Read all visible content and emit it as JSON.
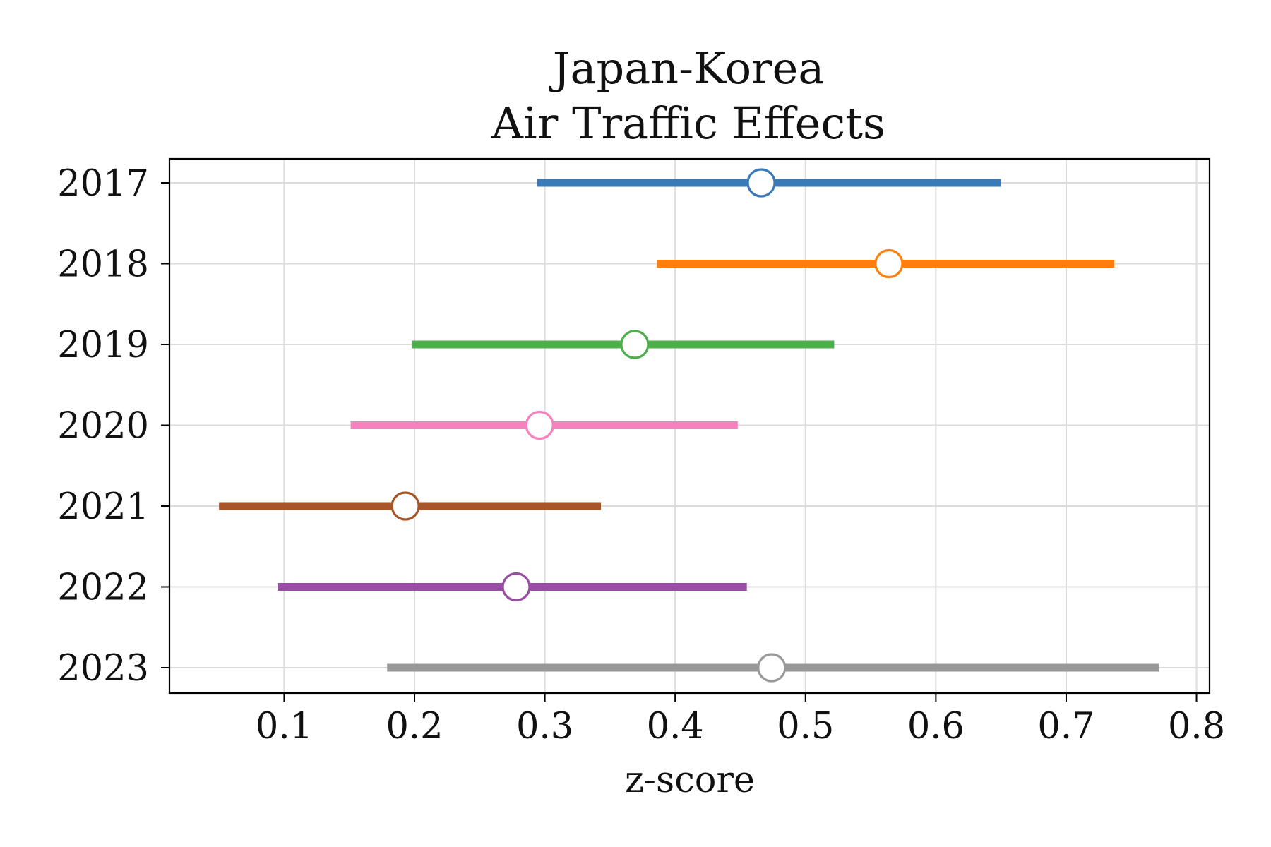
{
  "chart_data": {
    "type": "forest",
    "title": [
      "Japan-Korea",
      "Air Traffic Effects"
    ],
    "xlabel": "z-score",
    "ylabel": "",
    "xlim": [
      0.012,
      0.81
    ],
    "xticks": [
      0.1,
      0.2,
      0.3,
      0.4,
      0.5,
      0.6,
      0.7,
      0.8
    ],
    "xtick_labels": [
      "0.1",
      "0.2",
      "0.3",
      "0.4",
      "0.5",
      "0.6",
      "0.7",
      "0.8"
    ],
    "grid": true,
    "categories": [
      "2017",
      "2018",
      "2019",
      "2020",
      "2021",
      "2022",
      "2023"
    ],
    "estimates": [
      {
        "label": "2017",
        "estimate": 0.466,
        "lower": 0.294,
        "upper": 0.65,
        "color": "#3a7ab7"
      },
      {
        "label": "2018",
        "estimate": 0.564,
        "lower": 0.386,
        "upper": 0.737,
        "color": "#ff7f0e"
      },
      {
        "label": "2019",
        "estimate": 0.369,
        "lower": 0.198,
        "upper": 0.522,
        "color": "#4daf4a"
      },
      {
        "label": "2020",
        "estimate": 0.296,
        "lower": 0.151,
        "upper": 0.448,
        "color": "#f781bf"
      },
      {
        "label": "2021",
        "estimate": 0.193,
        "lower": 0.05,
        "upper": 0.343,
        "color": "#a65628"
      },
      {
        "label": "2022",
        "estimate": 0.278,
        "lower": 0.095,
        "upper": 0.455,
        "color": "#984ea3"
      },
      {
        "label": "2023",
        "estimate": 0.474,
        "lower": 0.179,
        "upper": 0.771,
        "color": "#999999"
      }
    ]
  }
}
